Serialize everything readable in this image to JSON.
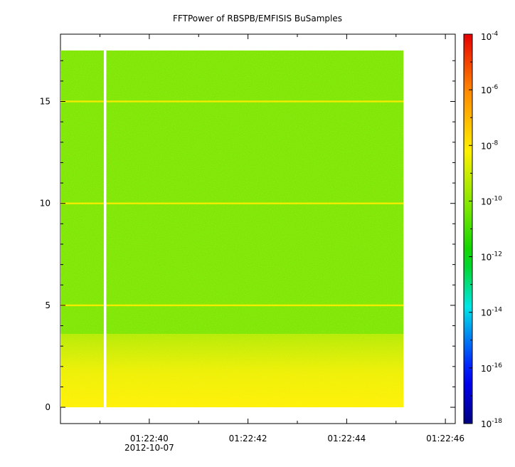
{
  "chart_data": {
    "type": "heatmap",
    "title": "FFTPower of RBSPB/EMFISIS  BuSamples",
    "xlabel": "",
    "ylabel": "",
    "x_ticks": [
      "01:22:40",
      "01:22:42",
      "01:22:44",
      "01:22:46"
    ],
    "x_date_label": "2012-10-07",
    "x_range_seconds": [
      38.2,
      46.2
    ],
    "data_x_range_seconds": [
      38.2,
      45.15
    ],
    "ylim": [
      -0.8,
      18.3
    ],
    "y_ticks": [
      0,
      5,
      10,
      15
    ],
    "data_y_range": [
      0,
      17.5
    ],
    "gap_x_seconds": 39.1,
    "line_features_y": [
      5,
      10,
      15
    ],
    "low_freq_band_y": [
      0,
      3.6
    ],
    "colorbar": {
      "scale": "log",
      "range": [
        1e-18,
        0.0001
      ],
      "tick_bases": [
        "10",
        "10",
        "10",
        "10",
        "10",
        "10",
        "10",
        "10"
      ],
      "tick_exponents": [
        "-18",
        "-16",
        "-14",
        "-12",
        "-10",
        "-8",
        "-6",
        "-4"
      ],
      "tick_values": [
        -18,
        -16,
        -14,
        -12,
        -10,
        -8,
        -6,
        -4
      ]
    },
    "background_level_log10": -10.3,
    "band_level_log10": -8.5
  }
}
